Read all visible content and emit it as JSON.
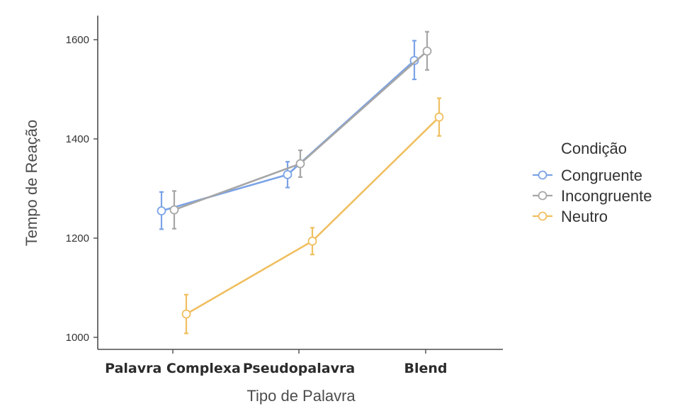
{
  "chart_data": {
    "type": "line",
    "title": "",
    "xlabel": "Tipo de Palavra",
    "ylabel": "Tempo de Reação",
    "categories": [
      "Palavra Complexa",
      "Pseudopalavra",
      "Blend"
    ],
    "ylim": [
      985,
      1640
    ],
    "yticks": [
      "1000",
      "1200",
      "1400",
      "1600"
    ],
    "grid": false,
    "legend": {
      "title": "Condição",
      "placement": "right"
    },
    "series": [
      {
        "name": "Congruente",
        "color": "#7ba3e6",
        "values": [
          1255,
          1328,
          1558
        ],
        "error": [
          [
            1218,
            1293
          ],
          [
            1302,
            1354
          ],
          [
            1520,
            1598
          ]
        ]
      },
      {
        "name": "Incongruente",
        "color": "#a6a6a6",
        "values": [
          1257,
          1350,
          1577
        ],
        "error": [
          [
            1219,
            1295
          ],
          [
            1323,
            1377
          ],
          [
            1539,
            1616
          ]
        ]
      },
      {
        "name": "Neutro",
        "color": "#f0bf60",
        "values": [
          1047,
          1194,
          1444
        ],
        "error": [
          [
            1008,
            1086
          ],
          [
            1167,
            1221
          ],
          [
            1406,
            1482
          ]
        ]
      }
    ]
  }
}
